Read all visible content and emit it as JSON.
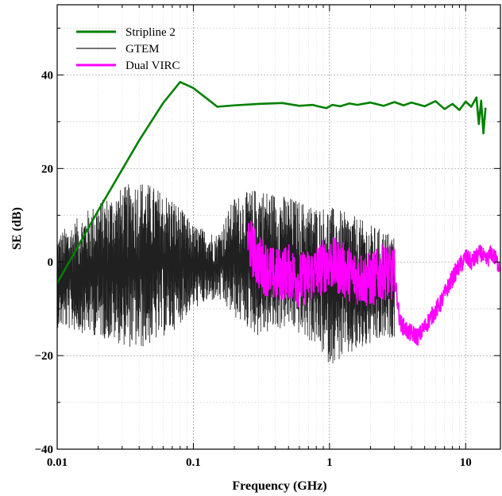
{
  "chart_data": {
    "type": "line",
    "xlabel": "Frequency (GHz)",
    "ylabel": "SE (dB)",
    "xscale": "log",
    "xlim": [
      0.01,
      18
    ],
    "ylim": [
      -40,
      55
    ],
    "xticks": [
      0.01,
      0.1,
      1,
      10
    ],
    "xtick_labels": [
      "0.01",
      "0.1",
      "1",
      "10"
    ],
    "yticks": [
      -40,
      -20,
      0,
      20,
      40
    ],
    "ytick_labels": [
      "−40",
      "−20",
      "0",
      "20",
      "40"
    ],
    "grid": true,
    "legend_position": "top-left",
    "series": [
      {
        "name": "Stripline 2",
        "color": "#008000",
        "x": [
          0.01,
          0.02,
          0.04,
          0.06,
          0.08,
          0.1,
          0.15,
          0.2,
          0.3,
          0.45,
          0.6,
          0.75,
          0.85,
          0.95,
          1.05,
          1.2,
          1.4,
          1.6,
          2.0,
          2.5,
          3.0,
          3.5,
          4.0,
          5.0,
          6.0,
          7.0,
          8.0,
          9.0,
          10.0,
          11.0,
          12.0,
          12.5,
          13.0,
          13.5,
          14.0
        ],
        "y": [
          -4.5,
          11,
          26,
          34,
          38.5,
          37.2,
          33.2,
          33.5,
          33.8,
          34,
          33.4,
          33.6,
          33.2,
          32.9,
          33.6,
          33.3,
          33.9,
          33.6,
          34.1,
          33.4,
          34.2,
          33.5,
          34.1,
          33.3,
          34.4,
          32.7,
          33.8,
          32.5,
          34.3,
          33.2,
          35.2,
          29.5,
          34.5,
          27.5,
          33
        ]
      },
      {
        "name": "GTEM",
        "color": "#202020",
        "x_range": [
          0.01,
          3.0
        ],
        "envelope": {
          "x": [
            0.01,
            0.02,
            0.04,
            0.07,
            0.1,
            0.15,
            0.2,
            0.3,
            0.5,
            0.8,
            1.0,
            1.5,
            2.0,
            3.0
          ],
          "upper": [
            6,
            13,
            18,
            14,
            8,
            6,
            14,
            16,
            14,
            12,
            12,
            10,
            8,
            6
          ],
          "lower": [
            -14,
            -16,
            -19,
            -15,
            -10,
            -8,
            -12,
            -16,
            -14,
            -18,
            -22,
            -20,
            -18,
            -16
          ]
        }
      },
      {
        "name": "Dual VIRC",
        "color": "#ff00ff",
        "x": [
          0.25,
          0.3,
          0.4,
          0.5,
          0.6,
          0.8,
          1.0,
          1.5,
          2.0,
          2.5,
          3.0,
          3.3,
          3.8,
          4.5,
          5.5,
          6.5,
          7.5,
          8.5,
          10.0,
          11.0,
          12.0,
          13.0,
          14.0,
          15.5,
          17.0,
          18.0
        ],
        "y": [
          5,
          0,
          -3,
          -2,
          -4,
          -2,
          0,
          -3,
          -4,
          -2,
          -3,
          -13,
          -15,
          -16,
          -12,
          -9,
          -5,
          -2,
          1,
          0,
          1,
          2,
          0,
          2,
          0,
          -1
        ]
      }
    ]
  }
}
